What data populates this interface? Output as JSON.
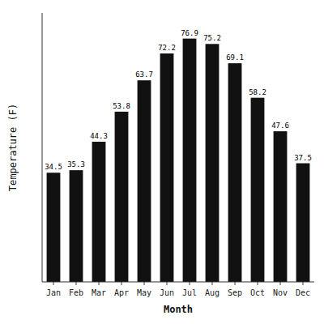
{
  "chart_data": {
    "type": "bar",
    "categories": [
      "Jan",
      "Feb",
      "Mar",
      "Apr",
      "May",
      "Jun",
      "Jul",
      "Aug",
      "Sep",
      "Oct",
      "Nov",
      "Dec"
    ],
    "values": [
      34.5,
      35.3,
      44.3,
      53.8,
      63.7,
      72.2,
      76.9,
      75.2,
      69.1,
      58.2,
      47.6,
      37.5
    ],
    "color": "#111111",
    "xlabel": "Month",
    "ylabel": "Temperature (F)",
    "ylim": [
      0,
      85
    ],
    "data_labels": true,
    "tick_labels": "x"
  }
}
